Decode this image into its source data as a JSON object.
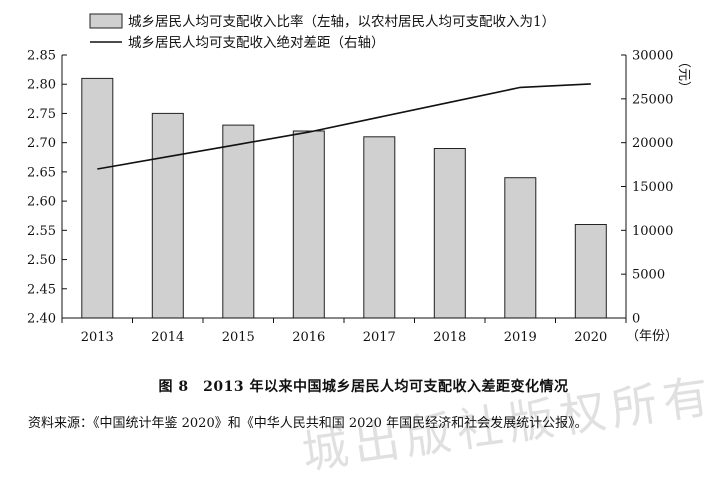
{
  "chart_data": {
    "type": "bar",
    "categories": [
      "2013",
      "2014",
      "2015",
      "2016",
      "2017",
      "2018",
      "2019",
      "2020"
    ],
    "x_unit": "（年份）",
    "series": [
      {
        "name": "城乡居民人均可支配收入比率（左轴，以农村居民人均可支配收入为1）",
        "type": "bar",
        "axis": "left",
        "values": [
          2.81,
          2.75,
          2.73,
          2.72,
          2.71,
          2.69,
          2.64,
          2.56
        ]
      },
      {
        "name": "城乡居民人均可支配收入绝对差距（右轴）",
        "type": "line",
        "axis": "right",
        "values": [
          17000,
          18400,
          19800,
          21200,
          22900,
          24600,
          26300,
          26700
        ]
      }
    ],
    "left_axis": {
      "ylim": [
        2.4,
        2.85
      ],
      "ticks": [
        "2.40",
        "2.45",
        "2.50",
        "2.55",
        "2.60",
        "2.65",
        "2.70",
        "2.75",
        "2.80",
        "2.85"
      ]
    },
    "right_axis": {
      "ylim": [
        0,
        30000
      ],
      "ticks": [
        "0",
        "5000",
        "10000",
        "15000",
        "20000",
        "25000",
        "30000"
      ],
      "unit": "（元）"
    },
    "colors": {
      "bar_fill": "#d0d0d0",
      "bar_stroke": "#222222",
      "line": "#111111"
    }
  },
  "caption": "图 8　2013 年以来中国城乡居民人均可支配收入差距变化情况",
  "source": "资料来源：《中国统计年鉴 2020》和《中华人民共和国 2020 年国民经济和社会发展统计公报》。",
  "watermark": "城出版社版权所有"
}
